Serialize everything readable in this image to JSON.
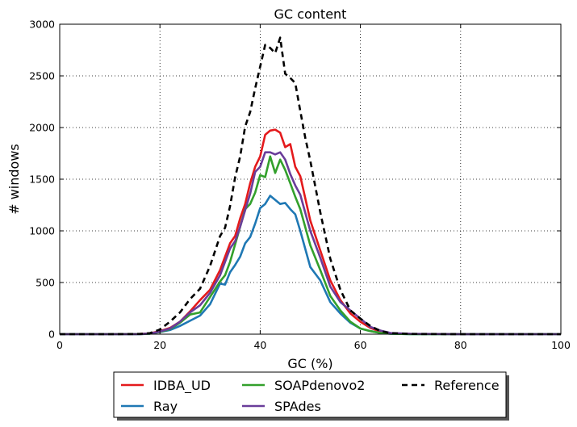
{
  "chart_data": {
    "type": "line",
    "title": "GC content",
    "xlabel": "GC (%)",
    "ylabel": "# windows",
    "xlim": [
      0,
      100
    ],
    "ylim": [
      0,
      3000
    ],
    "xticks": [
      "0",
      "20",
      "40",
      "60",
      "80",
      "100"
    ],
    "yticks": [
      "0",
      "500",
      "1000",
      "1500",
      "2000",
      "2500",
      "3000"
    ],
    "grid": true,
    "legend_position": "bottom-center",
    "series": [
      {
        "name": "IDBA_UD",
        "color": "#e41a1c",
        "dash": false,
        "x": [
          0,
          10,
          16,
          18,
          20,
          22,
          24,
          26,
          28,
          30,
          32,
          34,
          35,
          36,
          37,
          38,
          39,
          40,
          41,
          42,
          43,
          44,
          45,
          46,
          47,
          48,
          50,
          52,
          54,
          56,
          58,
          60,
          62,
          64,
          66,
          70,
          80,
          100
        ],
        "y": [
          0,
          0,
          2,
          8,
          30,
          60,
          120,
          220,
          330,
          430,
          620,
          880,
          950,
          1120,
          1260,
          1460,
          1620,
          1720,
          1930,
          1970,
          1980,
          1950,
          1810,
          1840,
          1620,
          1530,
          1100,
          810,
          520,
          330,
          200,
          120,
          60,
          25,
          8,
          2,
          0,
          0
        ]
      },
      {
        "name": "Ray",
        "color": "#1f78b4",
        "dash": false,
        "x": [
          0,
          10,
          16,
          18,
          20,
          22,
          24,
          26,
          28,
          30,
          32,
          33,
          34,
          35,
          36,
          37,
          38,
          39,
          40,
          41,
          42,
          43,
          44,
          45,
          46,
          47,
          48,
          50,
          52,
          54,
          56,
          58,
          60,
          62,
          64,
          66,
          70,
          80,
          100
        ],
        "y": [
          0,
          0,
          1,
          5,
          20,
          40,
          80,
          130,
          180,
          290,
          490,
          480,
          600,
          670,
          750,
          880,
          940,
          1070,
          1220,
          1260,
          1340,
          1300,
          1260,
          1270,
          1210,
          1160,
          1000,
          650,
          520,
          310,
          200,
          110,
          55,
          30,
          12,
          4,
          1,
          0,
          0
        ]
      },
      {
        "name": "SOAPdenovo2",
        "color": "#33a02c",
        "dash": false,
        "x": [
          0,
          10,
          16,
          18,
          20,
          22,
          24,
          26,
          28,
          30,
          32,
          33,
          34,
          35,
          36,
          37,
          38,
          39,
          40,
          41,
          42,
          43,
          44,
          45,
          46,
          47,
          48,
          50,
          52,
          54,
          56,
          58,
          60,
          62,
          64,
          66,
          70,
          80,
          100
        ],
        "y": [
          0,
          0,
          1,
          5,
          22,
          50,
          110,
          190,
          210,
          360,
          510,
          570,
          700,
          870,
          1040,
          1210,
          1260,
          1370,
          1540,
          1520,
          1720,
          1560,
          1690,
          1590,
          1460,
          1330,
          1210,
          860,
          620,
          370,
          230,
          120,
          55,
          30,
          12,
          4,
          1,
          0,
          0
        ]
      },
      {
        "name": "SPAdes",
        "color": "#6a3d9a",
        "dash": false,
        "x": [
          0,
          10,
          16,
          18,
          20,
          22,
          24,
          26,
          28,
          30,
          32,
          34,
          35,
          36,
          37,
          38,
          39,
          40,
          41,
          42,
          43,
          44,
          45,
          46,
          47,
          48,
          50,
          52,
          54,
          56,
          58,
          60,
          62,
          64,
          66,
          70,
          80,
          100
        ],
        "y": [
          0,
          0,
          1,
          6,
          25,
          55,
          120,
          210,
          280,
          400,
          570,
          830,
          900,
          1040,
          1200,
          1360,
          1570,
          1620,
          1760,
          1760,
          1740,
          1760,
          1690,
          1550,
          1440,
          1350,
          1000,
          740,
          460,
          310,
          230,
          150,
          70,
          35,
          12,
          4,
          0,
          0
        ]
      },
      {
        "name": "Reference",
        "color": "#000000",
        "dash": true,
        "x": [
          0,
          10,
          16,
          18,
          20,
          22,
          24,
          26,
          28,
          30,
          32,
          33,
          34,
          35,
          36,
          37,
          38,
          39,
          40,
          41,
          42,
          43,
          44,
          45,
          46,
          47,
          48,
          49,
          50,
          52,
          54,
          56,
          58,
          60,
          62,
          64,
          66,
          70,
          80,
          100
        ],
        "y": [
          0,
          0,
          2,
          10,
          45,
          120,
          210,
          340,
          440,
          660,
          950,
          1030,
          1240,
          1520,
          1720,
          2010,
          2150,
          2380,
          2590,
          2800,
          2770,
          2720,
          2870,
          2520,
          2480,
          2430,
          2160,
          1900,
          1680,
          1180,
          730,
          430,
          230,
          150,
          80,
          30,
          10,
          2,
          0,
          0
        ]
      }
    ]
  }
}
